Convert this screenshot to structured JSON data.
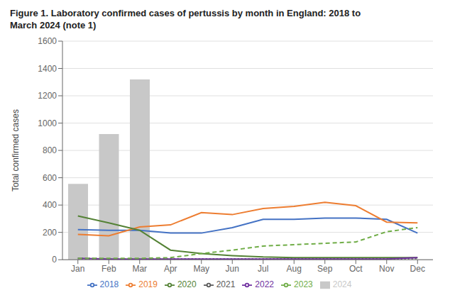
{
  "chart_data": {
    "type": "bar",
    "title": "Figure 1. Laboratory confirmed cases of pertussis by month in England: 2018 to\nMarch 2024 (note 1)",
    "y_label": "Total confirmed cases",
    "categories": [
      "Jan",
      "Feb",
      "Mar",
      "Apr",
      "May",
      "Jun",
      "Jul",
      "Aug",
      "Sep",
      "Oct",
      "Nov",
      "Dec"
    ],
    "series": [
      {
        "name": "2024",
        "type": "bar",
        "color": "#c8c8c8",
        "values": [
          555,
          920,
          1320,
          null,
          null,
          null,
          null,
          null,
          null,
          null,
          null,
          null
        ]
      },
      {
        "name": "2018",
        "type": "line",
        "color": "#4472c4",
        "line_style": "solid",
        "values": [
          220,
          215,
          215,
          195,
          195,
          235,
          295,
          295,
          305,
          305,
          295,
          195
        ]
      },
      {
        "name": "2019",
        "type": "line",
        "color": "#ed7d31",
        "line_style": "solid",
        "values": [
          185,
          175,
          240,
          255,
          345,
          330,
          375,
          390,
          420,
          395,
          275,
          270
        ]
      },
      {
        "name": "2020",
        "type": "line",
        "color": "#548235",
        "line_style": "solid",
        "values": [
          320,
          270,
          215,
          70,
          45,
          30,
          20,
          15,
          15,
          15,
          15,
          15
        ]
      },
      {
        "name": "2021",
        "type": "line",
        "color": "#595959",
        "line_style": "dotted",
        "values": [
          10,
          5,
          5,
          5,
          5,
          5,
          5,
          5,
          5,
          5,
          5,
          10
        ]
      },
      {
        "name": "2022",
        "type": "line",
        "color": "#7030a0",
        "line_style": "solid",
        "values": [
          10,
          5,
          5,
          5,
          5,
          5,
          5,
          5,
          5,
          5,
          5,
          15
        ]
      },
      {
        "name": "2023",
        "type": "line",
        "color": "#70ad47",
        "line_style": "dashed",
        "values": [
          10,
          10,
          10,
          15,
          45,
          70,
          100,
          110,
          120,
          130,
          205,
          235
        ]
      }
    ],
    "ylim": [
      0,
      1600
    ],
    "yticks": [
      0,
      200,
      400,
      600,
      800,
      1000,
      1200,
      1400,
      1600
    ],
    "grid": true,
    "legend": "bottom"
  }
}
